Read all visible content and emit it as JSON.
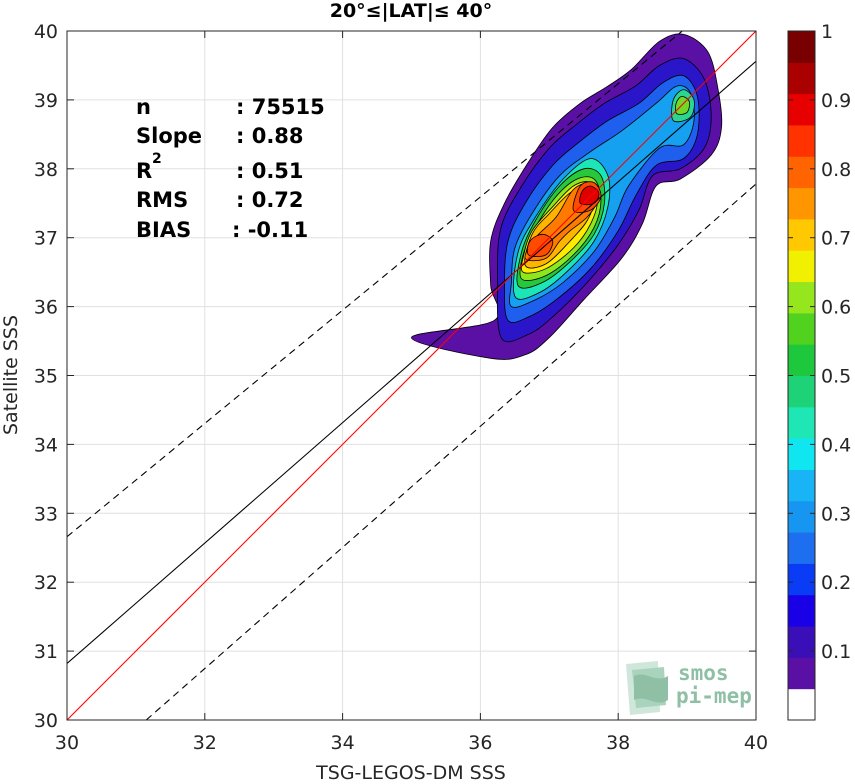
{
  "chart_data": {
    "type": "contour",
    "title": "20°≤|LAT|≤ 40°",
    "xlabel": "TSG-LEGOS-DM SSS",
    "ylabel": "Satellite SSS",
    "xlim": [
      30,
      40
    ],
    "ylim": [
      30,
      40
    ],
    "xticks": [
      "30",
      "32",
      "34",
      "36",
      "38",
      "40"
    ],
    "yticks": [
      "30",
      "31",
      "32",
      "33",
      "34",
      "35",
      "36",
      "37",
      "38",
      "39",
      "40"
    ],
    "grid": true,
    "stats": {
      "n_label": "n",
      "n_value": ": 75515",
      "slope_label": "Slope",
      "slope_value": ": 0.88",
      "r2_label": "R",
      "r2_sup": "2",
      "r2_value": ": 0.51",
      "rms_label": "RMS",
      "rms_value": ": 0.72",
      "bias_label": "BIAS",
      "bias_value": ": -0.11"
    },
    "lines": {
      "identity": {
        "x": [
          30,
          40
        ],
        "y": [
          30,
          40
        ],
        "color": "#ff0000"
      },
      "fit": {
        "x": [
          30,
          40
        ],
        "y": [
          30.82,
          39.56
        ],
        "color": "#000000"
      },
      "upper_bound": {
        "x": [
          30,
          40
        ],
        "y": [
          32.66,
          40.88
        ],
        "color": "#000000",
        "dash": true
      },
      "lower_bound": {
        "x": [
          31.15,
          40
        ],
        "y": [
          30,
          37.78
        ],
        "color": "#000000",
        "dash": true
      }
    },
    "density_centers": [
      {
        "x": 36.8,
        "y": 36.85,
        "value": 0.85
      },
      {
        "x": 37.6,
        "y": 37.65,
        "value": 0.92
      },
      {
        "x": 38.95,
        "y": 38.9,
        "value": 0.52
      }
    ],
    "density_contours": [
      {
        "level": 0.05,
        "color": "#5a0fa5",
        "points": [
          [
            35.0,
            35.55
          ],
          [
            36.15,
            35.25
          ],
          [
            36.65,
            35.3
          ],
          [
            37.0,
            35.55
          ],
          [
            37.5,
            36.1
          ],
          [
            38.05,
            36.7
          ],
          [
            38.35,
            37.2
          ],
          [
            38.55,
            37.75
          ],
          [
            38.9,
            37.85
          ],
          [
            39.35,
            38.2
          ],
          [
            39.5,
            38.6
          ],
          [
            39.45,
            39.15
          ],
          [
            39.3,
            39.7
          ],
          [
            38.95,
            39.95
          ],
          [
            38.6,
            39.85
          ],
          [
            38.2,
            39.45
          ],
          [
            37.85,
            39.2
          ],
          [
            37.45,
            38.95
          ],
          [
            37.05,
            38.6
          ],
          [
            36.7,
            38.1
          ],
          [
            36.35,
            37.5
          ],
          [
            36.15,
            36.95
          ],
          [
            36.15,
            36.3
          ],
          [
            36.2,
            35.8
          ]
        ]
      },
      {
        "level": 0.1,
        "color": "#2a16c8",
        "points": [
          [
            36.3,
            35.55
          ],
          [
            36.7,
            35.6
          ],
          [
            37.05,
            35.85
          ],
          [
            37.55,
            36.35
          ],
          [
            38.0,
            36.9
          ],
          [
            38.3,
            37.4
          ],
          [
            38.5,
            37.9
          ],
          [
            38.9,
            38.0
          ],
          [
            39.25,
            38.3
          ],
          [
            39.35,
            38.75
          ],
          [
            39.25,
            39.3
          ],
          [
            38.95,
            39.6
          ],
          [
            38.6,
            39.5
          ],
          [
            38.25,
            39.2
          ],
          [
            37.8,
            38.95
          ],
          [
            37.4,
            38.65
          ],
          [
            37.0,
            38.3
          ],
          [
            36.6,
            37.75
          ],
          [
            36.3,
            37.15
          ],
          [
            36.25,
            36.45
          ]
        ]
      },
      {
        "level": 0.2,
        "color": "#1e5fee",
        "points": [
          [
            36.4,
            35.8
          ],
          [
            36.7,
            35.85
          ],
          [
            37.1,
            36.1
          ],
          [
            37.6,
            36.55
          ],
          [
            38.0,
            37.1
          ],
          [
            38.25,
            37.6
          ],
          [
            38.55,
            38.05
          ],
          [
            38.95,
            38.15
          ],
          [
            39.15,
            38.5
          ],
          [
            39.15,
            39.05
          ],
          [
            38.95,
            39.35
          ],
          [
            38.65,
            39.25
          ],
          [
            38.3,
            38.95
          ],
          [
            37.85,
            38.7
          ],
          [
            37.45,
            38.4
          ],
          [
            37.05,
            38.05
          ],
          [
            36.65,
            37.5
          ],
          [
            36.4,
            36.95
          ],
          [
            36.35,
            36.3
          ]
        ]
      },
      {
        "level": 0.3,
        "color": "#16a0f0",
        "points": [
          [
            36.45,
            36.0
          ],
          [
            36.8,
            36.1
          ],
          [
            37.2,
            36.35
          ],
          [
            37.65,
            36.8
          ],
          [
            37.95,
            37.3
          ],
          [
            38.15,
            37.75
          ],
          [
            38.6,
            38.3
          ],
          [
            38.95,
            38.35
          ],
          [
            39.1,
            38.7
          ],
          [
            39.05,
            39.1
          ],
          [
            38.85,
            39.2
          ],
          [
            38.55,
            38.95
          ],
          [
            38.05,
            38.55
          ],
          [
            37.6,
            38.25
          ],
          [
            37.15,
            37.9
          ],
          [
            36.75,
            37.35
          ],
          [
            36.5,
            36.85
          ],
          [
            36.45,
            36.35
          ]
        ]
      },
      {
        "level": 0.4,
        "color": "#1ce6b8",
        "points": [
          [
            36.5,
            36.15
          ],
          [
            36.85,
            36.2
          ],
          [
            37.25,
            36.5
          ],
          [
            37.65,
            36.95
          ],
          [
            37.85,
            37.45
          ],
          [
            37.85,
            37.9
          ],
          [
            37.6,
            38.15
          ],
          [
            37.2,
            37.85
          ],
          [
            36.8,
            37.3
          ],
          [
            36.55,
            36.8
          ]
        ]
      },
      {
        "level": 0.5,
        "color": "#27c83c",
        "points": [
          [
            36.55,
            36.3
          ],
          [
            36.9,
            36.35
          ],
          [
            37.3,
            36.65
          ],
          [
            37.65,
            37.05
          ],
          [
            37.8,
            37.5
          ],
          [
            37.75,
            37.9
          ],
          [
            37.5,
            38.0
          ],
          [
            37.15,
            37.75
          ],
          [
            36.8,
            37.25
          ],
          [
            36.6,
            36.8
          ]
        ]
      },
      {
        "level": 0.6,
        "color": "#8ee61e",
        "points": [
          [
            36.6,
            36.4
          ],
          [
            36.95,
            36.45
          ],
          [
            37.35,
            36.75
          ],
          [
            37.65,
            37.15
          ],
          [
            37.75,
            37.55
          ],
          [
            37.65,
            37.85
          ],
          [
            37.4,
            37.85
          ],
          [
            37.1,
            37.6
          ],
          [
            36.8,
            37.15
          ],
          [
            36.62,
            36.75
          ]
        ]
      },
      {
        "level": 0.7,
        "color": "#ffea00",
        "points": [
          [
            36.62,
            36.5
          ],
          [
            36.95,
            36.55
          ],
          [
            37.35,
            36.85
          ],
          [
            37.6,
            37.2
          ],
          [
            37.7,
            37.55
          ],
          [
            37.6,
            37.8
          ],
          [
            37.35,
            37.75
          ],
          [
            37.05,
            37.45
          ],
          [
            36.75,
            37.1
          ],
          [
            36.63,
            36.75
          ]
        ]
      },
      {
        "level": 0.75,
        "color": "#ffb400",
        "points": [
          [
            36.65,
            36.6
          ],
          [
            36.95,
            36.62
          ],
          [
            37.3,
            36.95
          ],
          [
            37.55,
            37.25
          ],
          [
            37.65,
            37.55
          ],
          [
            37.55,
            37.75
          ],
          [
            37.3,
            37.65
          ],
          [
            37.0,
            37.35
          ],
          [
            36.75,
            37.05
          ]
        ]
      },
      {
        "level": 0.8,
        "color": "#ff7a00",
        "points": [
          [
            36.65,
            36.7
          ],
          [
            36.95,
            36.7
          ],
          [
            37.15,
            36.95
          ],
          [
            37.3,
            37.1
          ],
          [
            37.55,
            37.3
          ],
          [
            37.7,
            37.55
          ],
          [
            37.6,
            37.78
          ],
          [
            37.35,
            37.7
          ],
          [
            37.1,
            37.3
          ],
          [
            36.8,
            37.0
          ]
        ]
      },
      {
        "level": 0.85,
        "color": "#ff4a00",
        "points": [
          [
            36.7,
            36.75
          ],
          [
            36.95,
            36.75
          ],
          [
            37.05,
            36.95
          ],
          [
            36.9,
            37.05
          ],
          [
            36.72,
            36.95
          ]
        ]
      },
      {
        "level": 0.85,
        "color": "#ff4a00",
        "points": [
          [
            37.35,
            37.4
          ],
          [
            37.6,
            37.4
          ],
          [
            37.75,
            37.6
          ],
          [
            37.65,
            37.8
          ],
          [
            37.45,
            37.75
          ]
        ]
      },
      {
        "level": 0.9,
        "color": "#e10000",
        "points": [
          [
            37.45,
            37.5
          ],
          [
            37.65,
            37.5
          ],
          [
            37.72,
            37.65
          ],
          [
            37.6,
            37.75
          ],
          [
            37.48,
            37.68
          ]
        ]
      },
      {
        "level": 0.45,
        "color": "#2bd690",
        "points": [
          [
            38.8,
            38.7
          ],
          [
            39.05,
            38.75
          ],
          [
            39.1,
            39.0
          ],
          [
            38.95,
            39.15
          ],
          [
            38.8,
            39.0
          ]
        ]
      },
      {
        "level": 0.55,
        "color": "#6fd92a",
        "points": [
          [
            38.85,
            38.8
          ],
          [
            39.0,
            38.82
          ],
          [
            39.03,
            38.98
          ],
          [
            38.92,
            39.05
          ],
          [
            38.84,
            38.95
          ]
        ]
      }
    ],
    "colorbar": {
      "ticks": [
        "0.1",
        "0.2",
        "0.3",
        "0.4",
        "0.5",
        "0.6",
        "0.7",
        "0.8",
        "0.9",
        "1"
      ],
      "range": [
        0,
        1
      ],
      "levels": [
        0,
        0.05,
        0.1,
        0.15,
        0.2,
        0.25,
        0.3,
        0.35,
        0.4,
        0.45,
        0.5,
        0.55,
        0.6,
        0.65,
        0.7,
        0.75,
        0.8,
        0.85,
        0.9,
        0.95,
        1.0
      ],
      "colors": [
        "#ffffff",
        "#5a0fa5",
        "#3b0fb8",
        "#1a00e6",
        "#0a3cf5",
        "#1e6ef0",
        "#1696f0",
        "#18b4f5",
        "#10e6f0",
        "#1ee6b4",
        "#1ed278",
        "#1ec83c",
        "#50d21e",
        "#96e61e",
        "#f0f000",
        "#ffc800",
        "#ff9600",
        "#ff6400",
        "#ff3200",
        "#e60000",
        "#aa0000",
        "#780000"
      ]
    }
  },
  "logo": {
    "line1": "smos",
    "line2": "pi-mep",
    "color": "#8fbfa5"
  }
}
